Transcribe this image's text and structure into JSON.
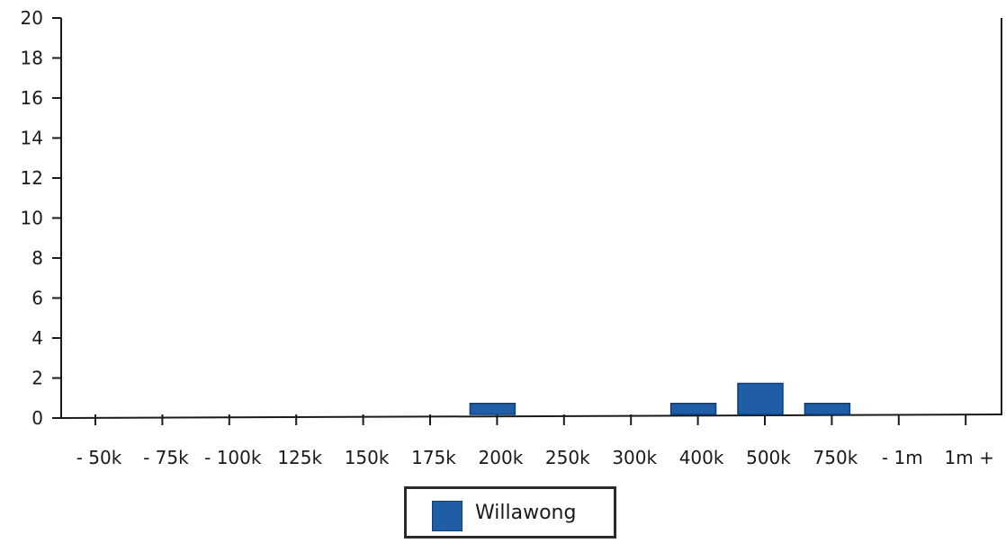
{
  "chart_data": {
    "type": "bar",
    "categories": [
      "- 50k",
      "- 75k",
      "- 100k",
      "- 125k",
      "- 150k",
      "- 175k",
      "- 200k",
      "- 250k",
      "- 300k",
      "- 400k",
      "- 500k",
      "- 750k",
      "- 1m",
      "1m +"
    ],
    "x_tick_labels": [
      "- 50k",
      "- 75k",
      "- 100k",
      "125k",
      "150k",
      "175k",
      "200k",
      "250k",
      "300k",
      "400k",
      "500k",
      "750k",
      "- 1m",
      "1m +"
    ],
    "series": [
      {
        "name": "Willawong",
        "color": "#1f5da6",
        "values": [
          0,
          0,
          0,
          0,
          0,
          0,
          1,
          0,
          0,
          1,
          2,
          1,
          0,
          0
        ]
      }
    ],
    "title": "",
    "xlabel": "",
    "ylabel": "",
    "ylim": [
      0,
      20
    ],
    "y_ticks": [
      "0",
      "2",
      "4",
      "6",
      "8",
      "10",
      "12",
      "14",
      "16",
      "18",
      "20"
    ],
    "grid": false,
    "legend_position": "bottom-center"
  }
}
